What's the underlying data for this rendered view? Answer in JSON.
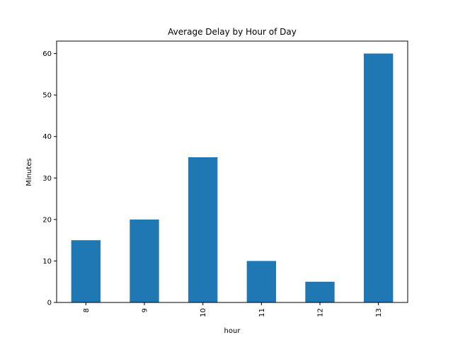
{
  "chart_data": {
    "type": "bar",
    "title": "Average Delay by Hour of Day",
    "xlabel": "hour",
    "ylabel": "Minutes",
    "categories": [
      "8",
      "9",
      "10",
      "11",
      "12",
      "13"
    ],
    "values": [
      15,
      20,
      35,
      10,
      5,
      60
    ],
    "ylim": [
      0,
      63
    ],
    "yticks": [
      0,
      10,
      20,
      30,
      40,
      50,
      60
    ],
    "bar_color": "#1f77b4",
    "grid": false,
    "legend": "none"
  }
}
